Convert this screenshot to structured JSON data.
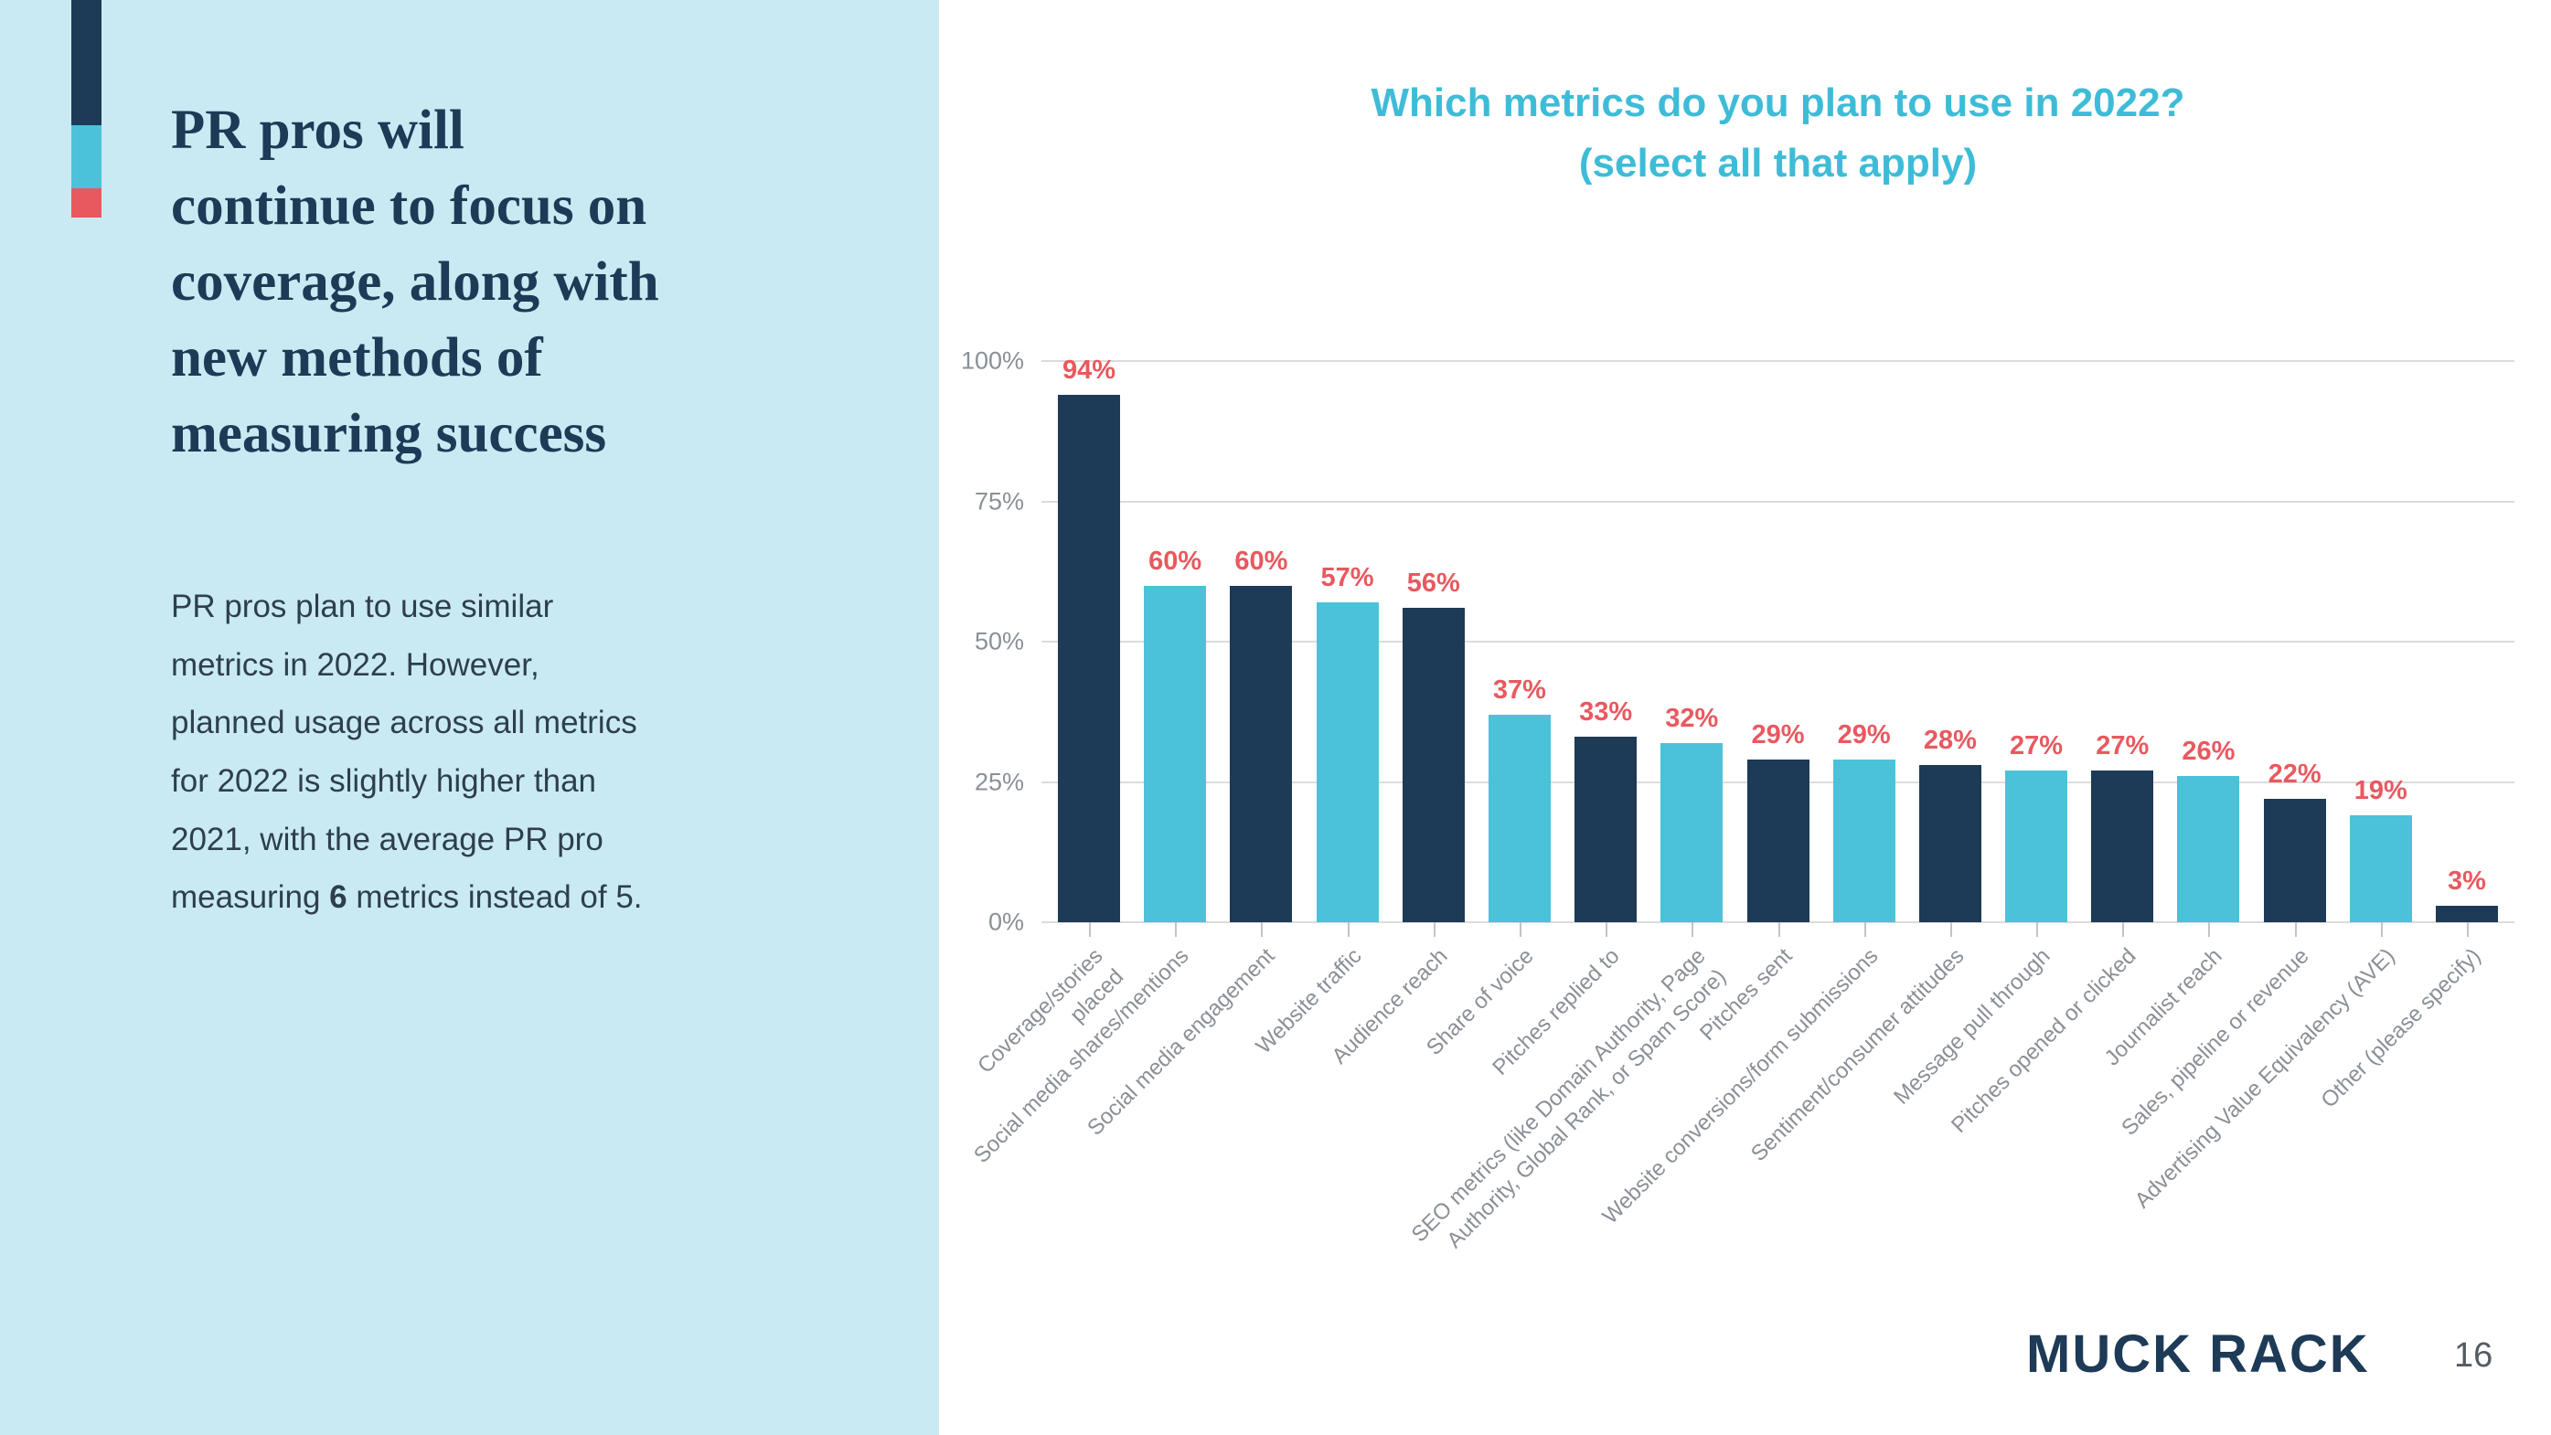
{
  "colors": {
    "navy": "#1d3a56",
    "teal": "#4cc2d9",
    "coral": "#e8595f",
    "panel_blue": "#c9eaf3",
    "title_teal": "#3ebcd7",
    "axis_gray": "#8a9097",
    "gridline_gray": "#dcdcdc",
    "body_text": "#2e3e4e"
  },
  "sidebar": {
    "heading_lines": [
      "PR pros will",
      "continue to focus on",
      "coverage, along with",
      "new methods of",
      "measuring success"
    ],
    "body_lines": [
      "PR pros plan to use similar",
      "metrics in 2022. However,",
      "planned usage across all metrics",
      "for 2022 is slightly higher than",
      "2021, with the average PR pro"
    ],
    "body_last_line": {
      "before": "measuring ",
      "bold": "6",
      "after": " metrics instead of 5."
    }
  },
  "chart": {
    "title_line1": "Which metrics do you plan to use in 2022?",
    "title_line2": "(select all that apply)"
  },
  "chart_data": {
    "type": "bar",
    "title": "Which metrics do you plan to use in 2022? (select all that apply)",
    "categories": [
      "Coverage/stories\nplaced",
      "Social media shares/mentions",
      "Social media engagement",
      "Website traffic",
      "Audience reach",
      "Share of voice",
      "Pitches replied to",
      "SEO metrics (like Domain Authority, Page\nAuthority, Global Rank, or Spam Score)",
      "Pitches sent",
      "Website conversions/form submissions",
      "Sentiment/consumer attitudes",
      "Message pull through",
      "Pitches opened or clicked",
      "Journalist reach",
      "Sales, pipeline or revenue",
      "Advertising Value Equivalency (AVE)",
      "Other (please specify)"
    ],
    "values": [
      94,
      60,
      60,
      57,
      56,
      37,
      33,
      32,
      29,
      29,
      28,
      27,
      27,
      26,
      22,
      19,
      3
    ],
    "value_label_suffix": "%",
    "xlabel": "",
    "ylabel": "",
    "ylim": [
      0,
      100
    ],
    "yticks": [
      {
        "label": "0%",
        "value": 0
      },
      {
        "label": "25%",
        "value": 25
      },
      {
        "label": "50%",
        "value": 50
      },
      {
        "label": "75%",
        "value": 75
      },
      {
        "label": "100%",
        "value": 100
      }
    ],
    "grid": true,
    "legend": false,
    "bar_color_alternation": [
      "navy",
      "teal"
    ],
    "value_label_color": "#e8595f"
  },
  "footer": {
    "logo_text": "MUCK RACK",
    "page_number": "16"
  }
}
